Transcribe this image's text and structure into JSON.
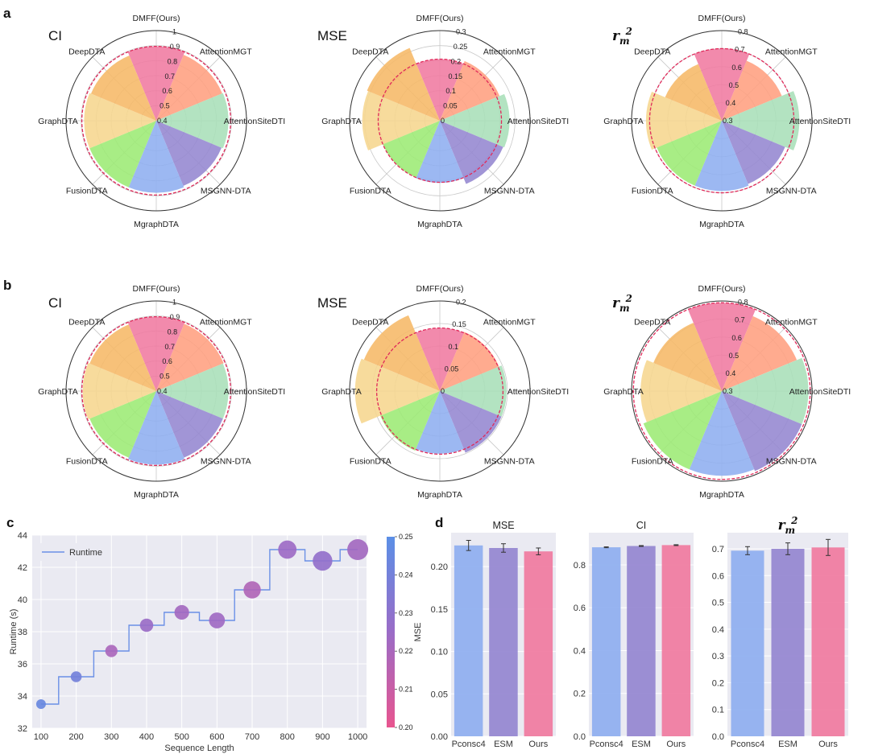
{
  "panels": {
    "a": "a",
    "b": "b",
    "c": "c",
    "d": "d"
  },
  "chart_data": [
    {
      "panel": "a",
      "type": "polar_bar",
      "title": "CI",
      "categories": [
        "DMFF(Ours)",
        "AttentionMGT",
        "AttentionSiteDTI",
        "MSGNN-DTA",
        "MgraphDTA",
        "FusionDTA",
        "GraphDTA",
        "DeepDTA"
      ],
      "values": [
        0.895,
        0.875,
        0.88,
        0.87,
        0.88,
        0.88,
        0.88,
        0.87
      ],
      "reference_value": 0.895,
      "rlim": [
        0.4,
        1.0
      ],
      "rticks": [
        "0.4",
        "0.5",
        "0.6",
        "0.7",
        "0.8",
        "0.9",
        "1"
      ]
    },
    {
      "panel": "a",
      "type": "polar_bar",
      "title": "MSE",
      "categories": [
        "DMFF(Ours)",
        "AttentionMGT",
        "AttentionSiteDTI",
        "MSGNN-DTA",
        "MgraphDTA",
        "FusionDTA",
        "GraphDTA",
        "DeepDTA"
      ],
      "values": [
        0.205,
        0.215,
        0.232,
        0.228,
        0.207,
        0.205,
        0.258,
        0.262
      ],
      "reference_value": 0.205,
      "rlim": [
        0,
        0.3
      ],
      "rticks": [
        "0",
        "0.05",
        "0.1",
        "0.15",
        "0.2",
        "0.25",
        "0.3"
      ]
    },
    {
      "panel": "a",
      "type": "polar_bar",
      "title_symbol": "r",
      "title_sub": "m",
      "title_sup": "2",
      "categories": [
        "DMFF(Ours)",
        "AttentionMGT",
        "AttentionSiteDTI",
        "MSGNN-DTA",
        "MgraphDTA",
        "FusionDTA",
        "GraphDTA",
        "DeepDTA"
      ],
      "values": [
        0.7,
        0.66,
        0.73,
        0.68,
        0.69,
        0.69,
        0.72,
        0.64
      ],
      "reference_value": 0.7,
      "rlim": [
        0.3,
        0.8
      ],
      "rticks": [
        "0.3",
        "0.4",
        "0.5",
        "0.6",
        "0.7",
        "0.8"
      ]
    },
    {
      "panel": "b",
      "type": "polar_bar",
      "title": "CI",
      "categories": [
        "DMFF(Ours)",
        "AttentionMGT",
        "AttentionSiteDTI",
        "MSGNN-DTA",
        "MgraphDTA",
        "FusionDTA",
        "GraphDTA",
        "DeepDTA"
      ],
      "values": [
        0.895,
        0.885,
        0.88,
        0.88,
        0.89,
        0.88,
        0.89,
        0.88
      ],
      "reference_value": 0.895,
      "rlim": [
        0.4,
        1.0
      ],
      "rticks": [
        "0.4",
        "0.5",
        "0.6",
        "0.7",
        "0.8",
        "0.9",
        "1"
      ]
    },
    {
      "panel": "b",
      "type": "polar_bar",
      "title": "MSE",
      "categories": [
        "DMFF(Ours)",
        "AttentionMGT",
        "AttentionSiteDTI",
        "MSGNN-DTA",
        "MgraphDTA",
        "FusionDTA",
        "GraphDTA",
        "DeepDTA"
      ],
      "values": [
        0.14,
        0.142,
        0.148,
        0.148,
        0.139,
        0.143,
        0.188,
        0.182
      ],
      "reference_value": 0.14,
      "rlim": [
        0,
        0.2
      ],
      "rticks": [
        "0",
        "0.05",
        "0.1",
        "0.15",
        "0.2"
      ]
    },
    {
      "panel": "b",
      "type": "polar_bar",
      "title_symbol": "r",
      "title_sub": "m",
      "title_sup": "2",
      "categories": [
        "DMFF(Ours)",
        "AttentionMGT",
        "AttentionSiteDTI",
        "MSGNN-DTA",
        "MgraphDTA",
        "FusionDTA",
        "GraphDTA",
        "DeepDTA"
      ],
      "values": [
        0.79,
        0.75,
        0.78,
        0.78,
        0.77,
        0.77,
        0.75,
        0.71
      ],
      "reference_value": 0.79,
      "rlim": [
        0.3,
        0.8
      ],
      "rticks": [
        "0.3",
        "0.4",
        "0.5",
        "0.6",
        "0.7",
        "0.8"
      ]
    },
    {
      "panel": "c",
      "type": "step_scatter",
      "xlabel": "Sequence Length",
      "ylabel": "Runtime (s)",
      "legend": "Runtime",
      "legend_position": "top-left",
      "colorbar_label": "MSE",
      "colorbar_ticks": [
        "0.20",
        "0.21",
        "0.22",
        "0.23",
        "0.24",
        "0.25"
      ],
      "colorbar_range": [
        0.2,
        0.25
      ],
      "x": [
        100,
        200,
        300,
        400,
        500,
        600,
        700,
        800,
        900,
        1000
      ],
      "runtime": [
        33.5,
        35.2,
        36.8,
        38.4,
        39.2,
        38.7,
        40.6,
        43.1,
        42.4,
        43.1
      ],
      "mse": [
        0.245,
        0.24,
        0.22,
        0.225,
        0.222,
        0.223,
        0.218,
        0.224,
        0.228,
        0.222
      ],
      "xticks": [
        "100",
        "200",
        "300",
        "400",
        "500",
        "600",
        "700",
        "800",
        "900",
        "1000"
      ],
      "yticks": [
        "32",
        "34",
        "36",
        "38",
        "40",
        "42",
        "44"
      ],
      "xlim": [
        75,
        1025
      ],
      "ylim": [
        32,
        44
      ],
      "grid": true
    },
    {
      "panel": "d",
      "type": "bar",
      "title": "MSE",
      "categories": [
        "Pconsc4",
        "ESM",
        "Ours"
      ],
      "values": [
        0.225,
        0.222,
        0.218
      ],
      "errors": [
        0.006,
        0.005,
        0.004
      ],
      "ylim": [
        0,
        0.24
      ],
      "yticks": [
        "0.00",
        "0.05",
        "0.10",
        "0.15",
        "0.20"
      ],
      "grid": true
    },
    {
      "panel": "d",
      "type": "bar",
      "title": "CI",
      "categories": [
        "Pconsc4",
        "ESM",
        "Ours"
      ],
      "values": [
        0.882,
        0.888,
        0.892
      ],
      "errors": [
        0.002,
        0.002,
        0.002
      ],
      "ylim": [
        0,
        0.95
      ],
      "yticks": [
        "0.0",
        "0.2",
        "0.4",
        "0.6",
        "0.8"
      ],
      "grid": true
    },
    {
      "panel": "d",
      "type": "bar",
      "title_symbol": "r",
      "title_sub": "m",
      "title_sup": "2",
      "categories": [
        "Pconsc4",
        "ESM",
        "Ours"
      ],
      "values": [
        0.693,
        0.7,
        0.705
      ],
      "errors": [
        0.015,
        0.022,
        0.03
      ],
      "ylim": [
        0,
        0.76
      ],
      "yticks": [
        "0.0",
        "0.1",
        "0.2",
        "0.3",
        "0.4",
        "0.5",
        "0.6",
        "0.7"
      ],
      "grid": true
    }
  ],
  "colors": {
    "categories": [
      "#f07aa0",
      "#ff9f7f",
      "#a8dfb8",
      "#9486d0",
      "#8eaef0",
      "#9ceb74",
      "#f6d68e",
      "#f6b866"
    ],
    "dmff_ring": "#e0295a",
    "runtime_line": "#6b90e6",
    "colormap_low": "#e8558f",
    "colormap_mid": "#9a6cc7",
    "colormap_high": "#5b8fe6",
    "bars": [
      "#8eaef0",
      "#9486d0",
      "#f07aa0"
    ],
    "plot_bg": "#eaeaf2"
  }
}
